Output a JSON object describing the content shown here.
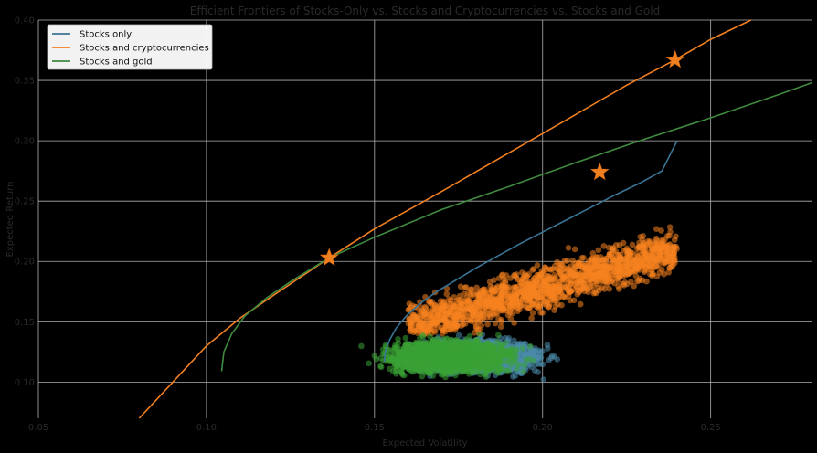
{
  "chart_data": {
    "type": "scatter",
    "title": "Efficient Frontiers of Stocks-Only vs. Stocks and Cryptocurrencies vs. Stocks and Gold",
    "xlabel": "Expected Volatility",
    "ylabel": "Expected Return",
    "xlim": [
      0.05,
      0.28
    ],
    "ylim": [
      0.07,
      0.4
    ],
    "xticks": [
      "0.05",
      "0.10",
      "0.15",
      "0.20",
      "0.25"
    ],
    "yticks": [
      "0.10",
      "0.15",
      "0.20",
      "0.25",
      "0.30",
      "0.35",
      "0.40"
    ],
    "grid": true,
    "legend_position": "top-left",
    "frontiers": [
      {
        "name": "Stocks only",
        "color": "#3b7596",
        "points": [
          [
            0.1529,
            0.117
          ],
          [
            0.1532,
            0.125
          ],
          [
            0.1545,
            0.135
          ],
          [
            0.1565,
            0.145
          ],
          [
            0.1595,
            0.155
          ],
          [
            0.1635,
            0.165
          ],
          [
            0.1685,
            0.175
          ],
          [
            0.1745,
            0.185
          ],
          [
            0.1805,
            0.195
          ],
          [
            0.187,
            0.205
          ],
          [
            0.1935,
            0.215
          ],
          [
            0.2005,
            0.225
          ],
          [
            0.2075,
            0.235
          ],
          [
            0.2145,
            0.245
          ],
          [
            0.2215,
            0.255
          ],
          [
            0.229,
            0.265
          ],
          [
            0.2355,
            0.275
          ],
          [
            0.24,
            0.3
          ]
        ]
      },
      {
        "name": "Stocks and cryptocurrencies",
        "color": "#f07f20",
        "points": [
          [
            0.08,
            0.07
          ],
          [
            0.09,
            0.1
          ],
          [
            0.1,
            0.13
          ],
          [
            0.11,
            0.153
          ],
          [
            0.12,
            0.172
          ],
          [
            0.1365,
            0.203
          ],
          [
            0.15,
            0.227
          ],
          [
            0.17,
            0.258
          ],
          [
            0.19,
            0.29
          ],
          [
            0.21,
            0.322
          ],
          [
            0.225,
            0.346
          ],
          [
            0.2394,
            0.367
          ],
          [
            0.25,
            0.384
          ],
          [
            0.262,
            0.4
          ]
        ]
      },
      {
        "name": "Stocks and gold",
        "color": "#3f8a3f",
        "points": [
          [
            0.1045,
            0.109
          ],
          [
            0.1052,
            0.125
          ],
          [
            0.1075,
            0.14
          ],
          [
            0.1115,
            0.155
          ],
          [
            0.118,
            0.17
          ],
          [
            0.126,
            0.185
          ],
          [
            0.1365,
            0.203
          ],
          [
            0.15,
            0.22
          ],
          [
            0.17,
            0.243
          ],
          [
            0.19,
            0.262
          ],
          [
            0.21,
            0.282
          ],
          [
            0.23,
            0.301
          ],
          [
            0.25,
            0.319
          ],
          [
            0.27,
            0.338
          ],
          [
            0.28,
            0.348
          ]
        ]
      }
    ],
    "clouds": [
      {
        "name": "Stocks only portfolios",
        "color": "#4a8cac",
        "x_range": [
          0.155,
          0.207
        ],
        "y_range": [
          0.097,
          0.145
        ]
      },
      {
        "name": "Stocks and cryptocurrencies portfolios",
        "color": "#f6821f",
        "x_range": [
          0.16,
          0.24
        ],
        "y_range": [
          0.14,
          0.235
        ]
      },
      {
        "name": "Stocks and gold portfolios",
        "color": "#3aa235",
        "x_range": [
          0.145,
          0.2
        ],
        "y_range": [
          0.097,
          0.145
        ]
      }
    ],
    "stars": [
      {
        "x": 0.2394,
        "y": 0.367,
        "color": "#f07f20"
      },
      {
        "x": 0.217,
        "y": 0.274,
        "color": "#f07f20"
      },
      {
        "x": 0.1365,
        "y": 0.203,
        "color": "#f07f20"
      }
    ]
  }
}
